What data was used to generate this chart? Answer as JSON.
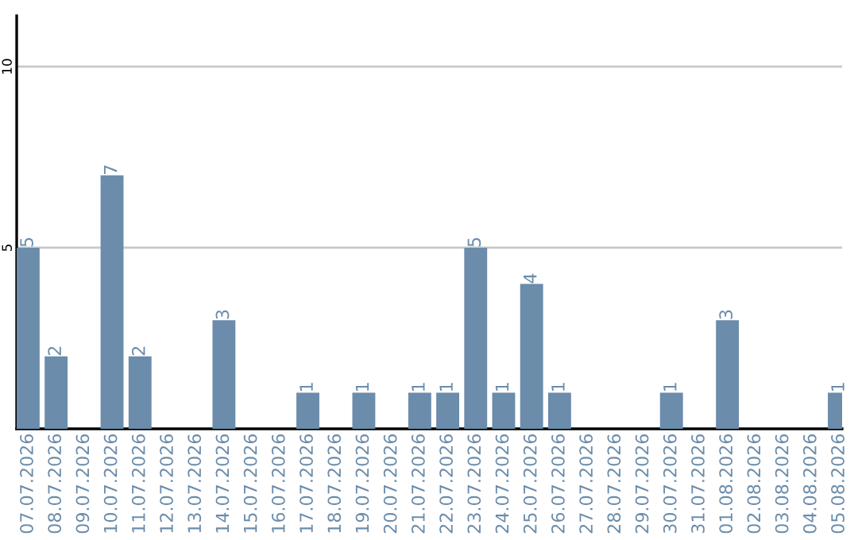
{
  "chart_data": {
    "type": "bar",
    "categories": [
      "07.07.2026",
      "08.07.2026",
      "09.07.2026",
      "10.07.2026",
      "11.07.2026",
      "12.07.2026",
      "13.07.2026",
      "14.07.2026",
      "15.07.2026",
      "16.07.2026",
      "17.07.2026",
      "18.07.2026",
      "19.07.2026",
      "20.07.2026",
      "21.07.2026",
      "22.07.2026",
      "23.07.2026",
      "24.07.2026",
      "25.07.2026",
      "26.07.2026",
      "27.07.2026",
      "28.07.2026",
      "29.07.2026",
      "30.07.2026",
      "31.07.2026",
      "01.08.2026",
      "02.08.2026",
      "03.08.2026",
      "04.08.2026",
      "05.08.2026"
    ],
    "values": [
      5,
      2,
      0,
      7,
      2,
      0,
      0,
      3,
      0,
      0,
      1,
      0,
      1,
      0,
      1,
      1,
      5,
      1,
      4,
      1,
      0,
      0,
      0,
      1,
      0,
      3,
      0,
      0,
      0,
      1
    ],
    "value_labels": [
      "5",
      "2",
      null,
      "7",
      "2",
      null,
      null,
      "3",
      null,
      null,
      "1",
      null,
      "1",
      null,
      "1",
      "1",
      "5",
      "1",
      "4",
      "1",
      null,
      null,
      null,
      "1",
      null,
      "3",
      null,
      null,
      null,
      "1"
    ],
    "color": "#6b8cab",
    "ylim": [
      0,
      11.4
    ],
    "yticks": [
      5,
      10
    ],
    "grid": "y"
  }
}
